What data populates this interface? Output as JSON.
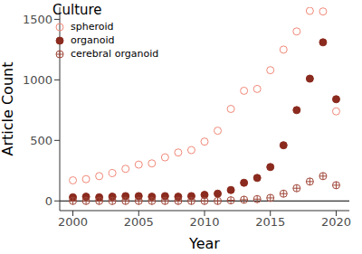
{
  "chart_data": {
    "type": "scatter",
    "x_label": "Year",
    "y_label": "Article Count",
    "legend_title": "Culture",
    "legend": "top-left",
    "x": [
      2000,
      2001,
      2002,
      2003,
      2004,
      2005,
      2006,
      2007,
      2008,
      2009,
      2010,
      2011,
      2012,
      2013,
      2014,
      2015,
      2016,
      2017,
      2018,
      2019,
      2020
    ],
    "series": [
      {
        "name": "spheroid",
        "color": "#f08878",
        "marker": "open_circle",
        "values": [
          170,
          180,
          205,
          230,
          265,
          300,
          310,
          360,
          400,
          420,
          490,
          580,
          760,
          910,
          925,
          1080,
          1250,
          1400,
          1570,
          1565,
          740
        ]
      },
      {
        "name": "organoid",
        "color": "#8b2a1e",
        "marker": "filled_circle",
        "values": [
          30,
          35,
          30,
          35,
          40,
          40,
          35,
          40,
          35,
          40,
          50,
          60,
          90,
          150,
          190,
          280,
          460,
          750,
          1010,
          1310,
          840
        ]
      },
      {
        "name": "cerebral organoid",
        "color": "#a0483a",
        "marker": "circle_plus",
        "values": [
          0,
          0,
          0,
          0,
          0,
          0,
          0,
          0,
          0,
          0,
          0,
          0,
          5,
          10,
          15,
          25,
          60,
          105,
          160,
          205,
          130
        ]
      }
    ],
    "xlim": [
      1999,
      2021
    ],
    "xticks": [
      2000,
      2005,
      2010,
      2015,
      2020
    ],
    "ylim": [
      -80,
      1600
    ],
    "yticks": [
      0,
      500,
      1000,
      1500
    ],
    "grid": false
  }
}
